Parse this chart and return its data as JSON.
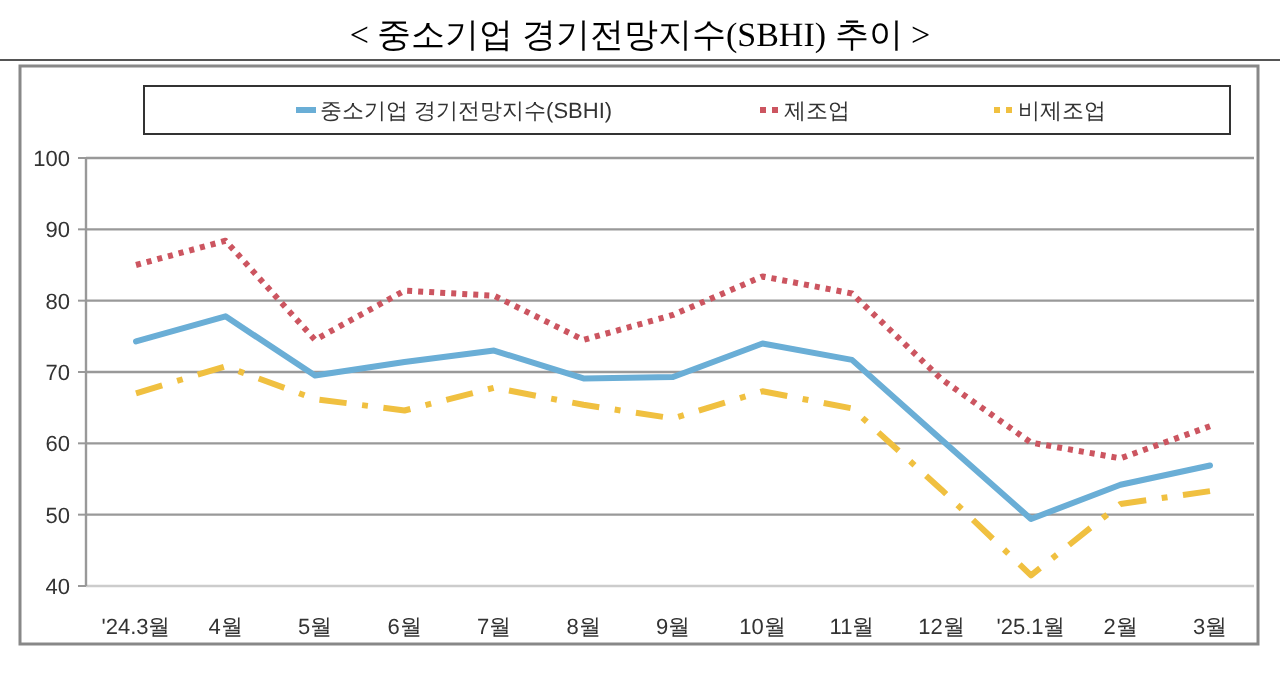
{
  "chart_data": {
    "type": "line",
    "title": "< 중소기업 경기전망지수(SBHI) 추이 >",
    "categories": [
      "'24.3월",
      "4월",
      "5월",
      "6월",
      "7월",
      "8월",
      "9월",
      "10월",
      "11월",
      "12월",
      "'25.1월",
      "2월",
      "3월"
    ],
    "series": [
      {
        "name": "중소기업 경기전망지수(SBHI)",
        "color": "#6aaed6",
        "line_style": "solid",
        "values": [
          74.3,
          77.8,
          69.5,
          71.4,
          73.0,
          69.1,
          69.3,
          74.0,
          71.7,
          60.5,
          49.4,
          54.2,
          56.9
        ]
      },
      {
        "name": "제조업",
        "color": "#cc5560",
        "line_style": "dotted",
        "values": [
          85.0,
          88.4,
          74.5,
          81.4,
          80.7,
          74.5,
          78.0,
          83.4,
          81.0,
          69.0,
          60.1,
          57.9,
          62.4
        ]
      },
      {
        "name": "비제조업",
        "color": "#f0c040",
        "line_style": "dashdot",
        "values": [
          67.0,
          70.8,
          66.2,
          64.6,
          67.8,
          65.4,
          63.5,
          67.3,
          64.9,
          53.5,
          41.5,
          51.5,
          53.3
        ]
      }
    ],
    "ylim": [
      40,
      100
    ],
    "yticks": [
      40,
      50,
      60,
      70,
      80,
      90,
      100
    ],
    "grid": "y",
    "legend": "top",
    "marker": "none"
  }
}
